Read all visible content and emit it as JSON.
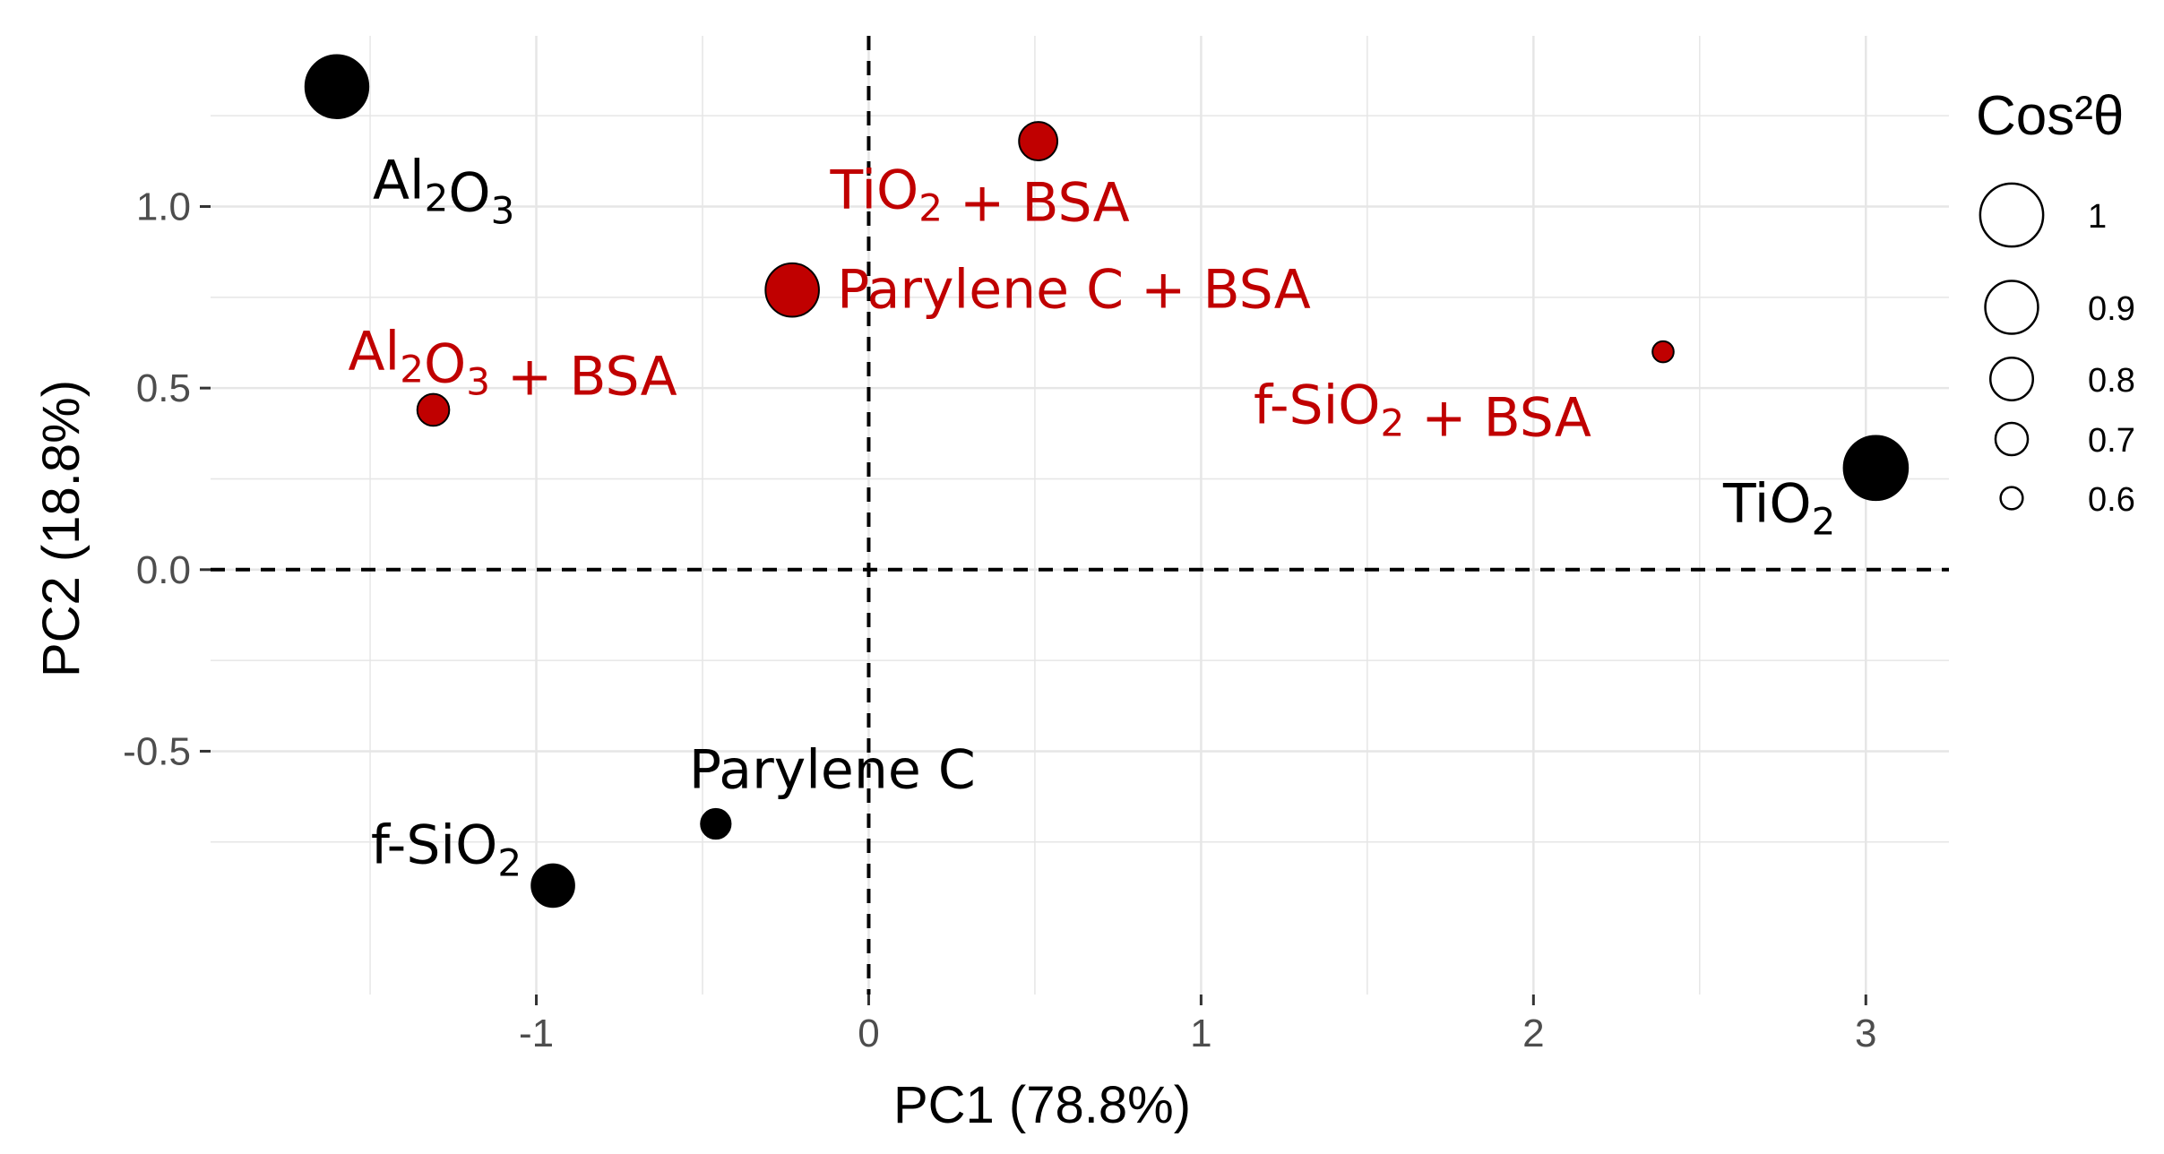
{
  "chart_data": {
    "type": "scatter",
    "title": "",
    "xlabel": "PC1 (78.8%)",
    "ylabel": "PC2 (18.8%)",
    "xlim": [
      -1.98,
      3.25
    ],
    "ylim": [
      -1.17,
      1.47
    ],
    "grid": true,
    "x_ticks": [
      -1,
      0,
      1,
      2,
      3
    ],
    "x_tick_labels": [
      "-1",
      "0",
      "1",
      "2",
      "3"
    ],
    "y_ticks": [
      -0.5,
      0.0,
      0.5,
      1.0
    ],
    "y_tick_labels": [
      "-0.5",
      "0.0",
      "0.5",
      "1.0"
    ],
    "reference_lines": {
      "x": 0,
      "y": 0,
      "style": "dashed"
    },
    "colors": {
      "uncoated": "#000000",
      "bsa": "#c00000",
      "grid": "#e6e6e6",
      "tick_text": "#4d4d4d"
    },
    "points": [
      {
        "name": "Al2O3",
        "label_parts": [
          [
            "Al",
            ""
          ],
          [
            "2",
            "sub"
          ],
          [
            "O",
            ""
          ],
          [
            "3",
            "sub"
          ]
        ],
        "x": -1.6,
        "y": 1.33,
        "cos2": 0.97,
        "group": "uncoated",
        "label_anchor": "below-right"
      },
      {
        "name": "TiO2 + BSA",
        "label_parts": [
          [
            "TiO",
            ""
          ],
          [
            "2",
            "sub"
          ],
          [
            " + BSA",
            ""
          ]
        ],
        "x": 0.51,
        "y": 1.18,
        "cos2": 0.74,
        "group": "bsa",
        "label_anchor": "below"
      },
      {
        "name": "Parylene C + BSA",
        "label_parts": [
          [
            "Parylene C + BSA",
            ""
          ]
        ],
        "x": -0.23,
        "y": 0.77,
        "cos2": 0.88,
        "group": "bsa",
        "label_anchor": "right"
      },
      {
        "name": "Al2O3 + BSA",
        "label_parts": [
          [
            "Al",
            ""
          ],
          [
            "2",
            "sub"
          ],
          [
            "O",
            ""
          ],
          [
            "3",
            "sub"
          ],
          [
            " + BSA",
            ""
          ]
        ],
        "x": -1.31,
        "y": 0.44,
        "cos2": 0.68,
        "group": "bsa",
        "label_anchor": "above-right"
      },
      {
        "name": "f-SiO2 + BSA",
        "label_parts": [
          [
            "f-SiO",
            ""
          ],
          [
            "2",
            "sub"
          ],
          [
            " + BSA",
            ""
          ]
        ],
        "x": 2.39,
        "y": 0.6,
        "cos2": 0.58,
        "group": "bsa",
        "label_anchor": "below-left"
      },
      {
        "name": "TiO2",
        "label_parts": [
          [
            "TiO",
            ""
          ],
          [
            "2",
            "sub"
          ]
        ],
        "x": 3.03,
        "y": 0.28,
        "cos2": 0.98,
        "group": "uncoated",
        "label_anchor": "below-left"
      },
      {
        "name": "Parylene C",
        "label_parts": [
          [
            "Parylene C",
            ""
          ]
        ],
        "x": -0.46,
        "y": -0.7,
        "cos2": 0.66,
        "group": "uncoated",
        "label_anchor": "above-right"
      },
      {
        "name": "f-SiO2",
        "label_parts": [
          [
            "f-SiO",
            ""
          ],
          [
            "2",
            "sub"
          ]
        ],
        "x": -0.95,
        "y": -0.87,
        "cos2": 0.78,
        "group": "uncoated",
        "label_anchor": "above-left"
      }
    ],
    "legend": {
      "title": "Cos²θ",
      "placement": "right",
      "entries": [
        {
          "label": "1",
          "value": 1.0
        },
        {
          "label": "0.9",
          "value": 0.9
        },
        {
          "label": "0.8",
          "value": 0.8
        },
        {
          "label": "0.7",
          "value": 0.7
        },
        {
          "label": "0.6",
          "value": 0.6
        }
      ]
    }
  }
}
